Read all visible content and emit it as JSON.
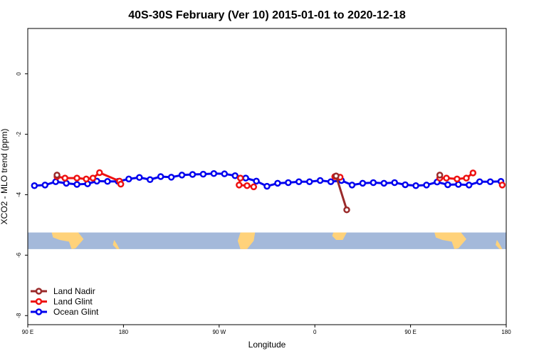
{
  "chart_data": {
    "type": "line",
    "title": "40S-30S February (Ver 10)   2015-01-01 to 2020-12-18",
    "xlabel": "Longitude",
    "ylabel": "XCO2 - MLO trend (ppm)",
    "xlim": [
      0,
      360
    ],
    "ylim": [
      -8.3,
      1.5
    ],
    "x_ticks": [
      {
        "value": 0,
        "label": "90 E"
      },
      {
        "value": 72,
        "label": "180"
      },
      {
        "value": 144,
        "label": "90 W"
      },
      {
        "value": 216,
        "label": "0"
      },
      {
        "value": 288,
        "label": "90 E"
      },
      {
        "value": 360,
        "label": "180"
      }
    ],
    "y_ticks": [
      {
        "value": 0,
        "label": "0"
      },
      {
        "value": -2,
        "label": "-2"
      },
      {
        "value": -4,
        "label": "-4"
      },
      {
        "value": -6,
        "label": "-6"
      },
      {
        "value": -8,
        "label": "-8"
      }
    ],
    "map_band": {
      "y_top": -5.25,
      "y_bottom": -5.8,
      "ocean_color": "#a4b9da",
      "land_color": "#ffd27a"
    },
    "series": [
      {
        "name": "Land Nadir",
        "color": "#9a2a2a",
        "points": [
          [
            22,
            -3.35
          ],
          [
            310,
            -3.35
          ],
          [
            232,
            -3.38
          ],
          [
            240,
            -4.5
          ]
        ]
      },
      {
        "name": "Land Glint",
        "color": "#ee1111",
        "points": [
          [
            22,
            -3.4
          ],
          [
            28,
            -3.45
          ],
          [
            37,
            -3.45
          ],
          [
            44,
            -3.48
          ],
          [
            49,
            -3.45
          ],
          [
            54,
            -3.27
          ],
          [
            69,
            -3.55
          ],
          [
            70,
            -3.65
          ],
          [
            160,
            -3.45
          ],
          [
            159,
            -3.68
          ],
          [
            165,
            -3.7
          ],
          [
            170,
            -3.74
          ],
          [
            231,
            -3.4
          ],
          [
            235,
            -3.42
          ],
          [
            310,
            -3.45
          ],
          [
            315,
            -3.45
          ],
          [
            323,
            -3.48
          ],
          [
            330,
            -3.45
          ],
          [
            335,
            -3.28
          ],
          [
            357,
            -3.68
          ]
        ]
      },
      {
        "name": "Ocean Glint",
        "color": "#0000ee",
        "points": [
          [
            5,
            -3.7
          ],
          [
            13,
            -3.68
          ],
          [
            21,
            -3.57
          ],
          [
            29,
            -3.62
          ],
          [
            37,
            -3.66
          ],
          [
            45,
            -3.64
          ],
          [
            52,
            -3.55
          ],
          [
            60,
            -3.56
          ],
          [
            68,
            -3.56
          ],
          [
            76,
            -3.48
          ],
          [
            84,
            -3.43
          ],
          [
            92,
            -3.5
          ],
          [
            100,
            -3.4
          ],
          [
            108,
            -3.42
          ],
          [
            116,
            -3.35
          ],
          [
            124,
            -3.33
          ],
          [
            132,
            -3.32
          ],
          [
            140,
            -3.3
          ],
          [
            148,
            -3.31
          ],
          [
            156,
            -3.37
          ],
          [
            164,
            -3.45
          ],
          [
            172,
            -3.55
          ],
          [
            180,
            -3.72
          ],
          [
            188,
            -3.62
          ],
          [
            196,
            -3.6
          ],
          [
            204,
            -3.57
          ],
          [
            212,
            -3.57
          ],
          [
            220,
            -3.53
          ],
          [
            228,
            -3.57
          ],
          [
            236,
            -3.53
          ],
          [
            244,
            -3.68
          ],
          [
            252,
            -3.62
          ],
          [
            260,
            -3.6
          ],
          [
            268,
            -3.62
          ],
          [
            276,
            -3.6
          ],
          [
            284,
            -3.67
          ],
          [
            292,
            -3.7
          ],
          [
            300,
            -3.68
          ],
          [
            308,
            -3.58
          ],
          [
            316,
            -3.67
          ],
          [
            324,
            -3.66
          ],
          [
            332,
            -3.68
          ],
          [
            340,
            -3.57
          ],
          [
            348,
            -3.57
          ],
          [
            356,
            -3.56
          ]
        ]
      }
    ],
    "legend": {
      "position": "bottom-left"
    }
  }
}
